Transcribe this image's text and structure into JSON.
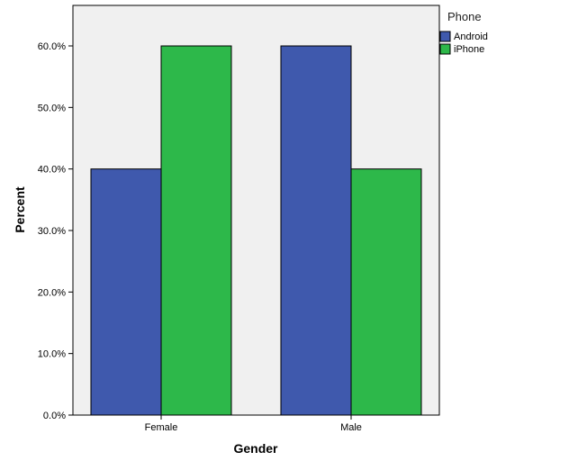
{
  "chart_data": {
    "type": "bar",
    "categories": [
      "Female",
      "Male"
    ],
    "series": [
      {
        "name": "Android",
        "values": [
          40.0,
          60.0
        ],
        "color": "#3f59ad"
      },
      {
        "name": "iPhone",
        "values": [
          60.0,
          40.0
        ],
        "color": "#2db84a"
      }
    ],
    "xlabel": "Gender",
    "ylabel": "Percent",
    "ylim": [
      0,
      67
    ],
    "yticks": [
      0,
      10,
      20,
      30,
      40,
      50,
      60
    ],
    "ytick_labels": [
      "0.0%",
      "10.0%",
      "20.0%",
      "30.0%",
      "40.0%",
      "50.0%",
      "60.0%"
    ],
    "legend_title": "Phone",
    "legend_position": "top-right",
    "grid": false,
    "plot_background": "#f0f0f0"
  }
}
